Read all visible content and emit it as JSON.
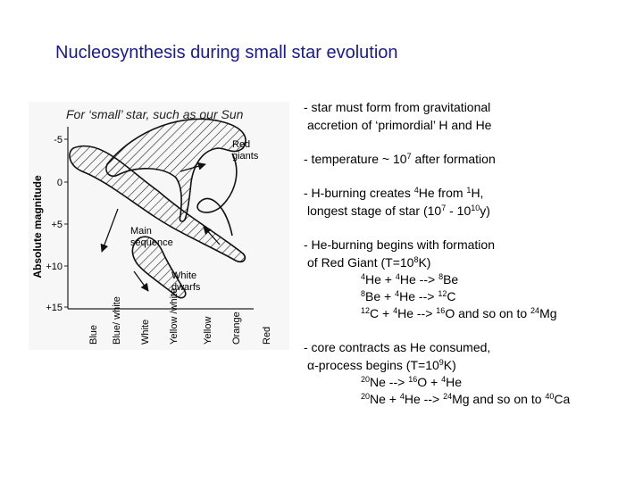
{
  "title": "Nucleosynthesis during small star evolution",
  "figure": {
    "caption": "For ‘small’ star, such as our Sun",
    "y_axis_label": "Absolute magnitude",
    "y_ticks": [
      "-5",
      "0",
      "+5",
      "+10",
      "+15"
    ],
    "x_labels": [
      "Blue",
      "Blue/ white",
      "White",
      "Yellow /white",
      "Yellow",
      "Orange",
      "Red"
    ],
    "region_labels": {
      "red_giants": [
        "Red",
        "giants"
      ],
      "main_sequence": [
        "Main",
        "sequence"
      ],
      "white_dwarfs": [
        "White",
        "dwarfs"
      ]
    }
  },
  "bullets": [
    {
      "lines": [
        "- star must form from gravitational",
        "accretion of ‘primordial’ H and He"
      ]
    },
    {
      "lines": [
        "- temperature ~ 10{7} after formation"
      ]
    },
    {
      "lines": [
        "- H-burning creates {4}He from {1}H,",
        "longest stage of star (10{7} - 10{10}y)"
      ]
    },
    {
      "lines": [
        "- He-burning begins with formation",
        "of Red Giant (T=10{8}K)"
      ],
      "reactions": [
        "{4}He + {4}He --> {8}Be",
        "{8}Be + {4}He --> {12}C",
        "{12}C + {4}He --> {16}O and so on to {24}Mg"
      ]
    },
    {
      "lines": [
        "- core contracts as He consumed,",
        "α-process begins (T=10{9}K)"
      ],
      "reactions": [
        "{20}Ne --> {16}O + {4}He",
        "{20}Ne + {4}He --> {24}Mg and so on to {40}Ca"
      ]
    }
  ]
}
